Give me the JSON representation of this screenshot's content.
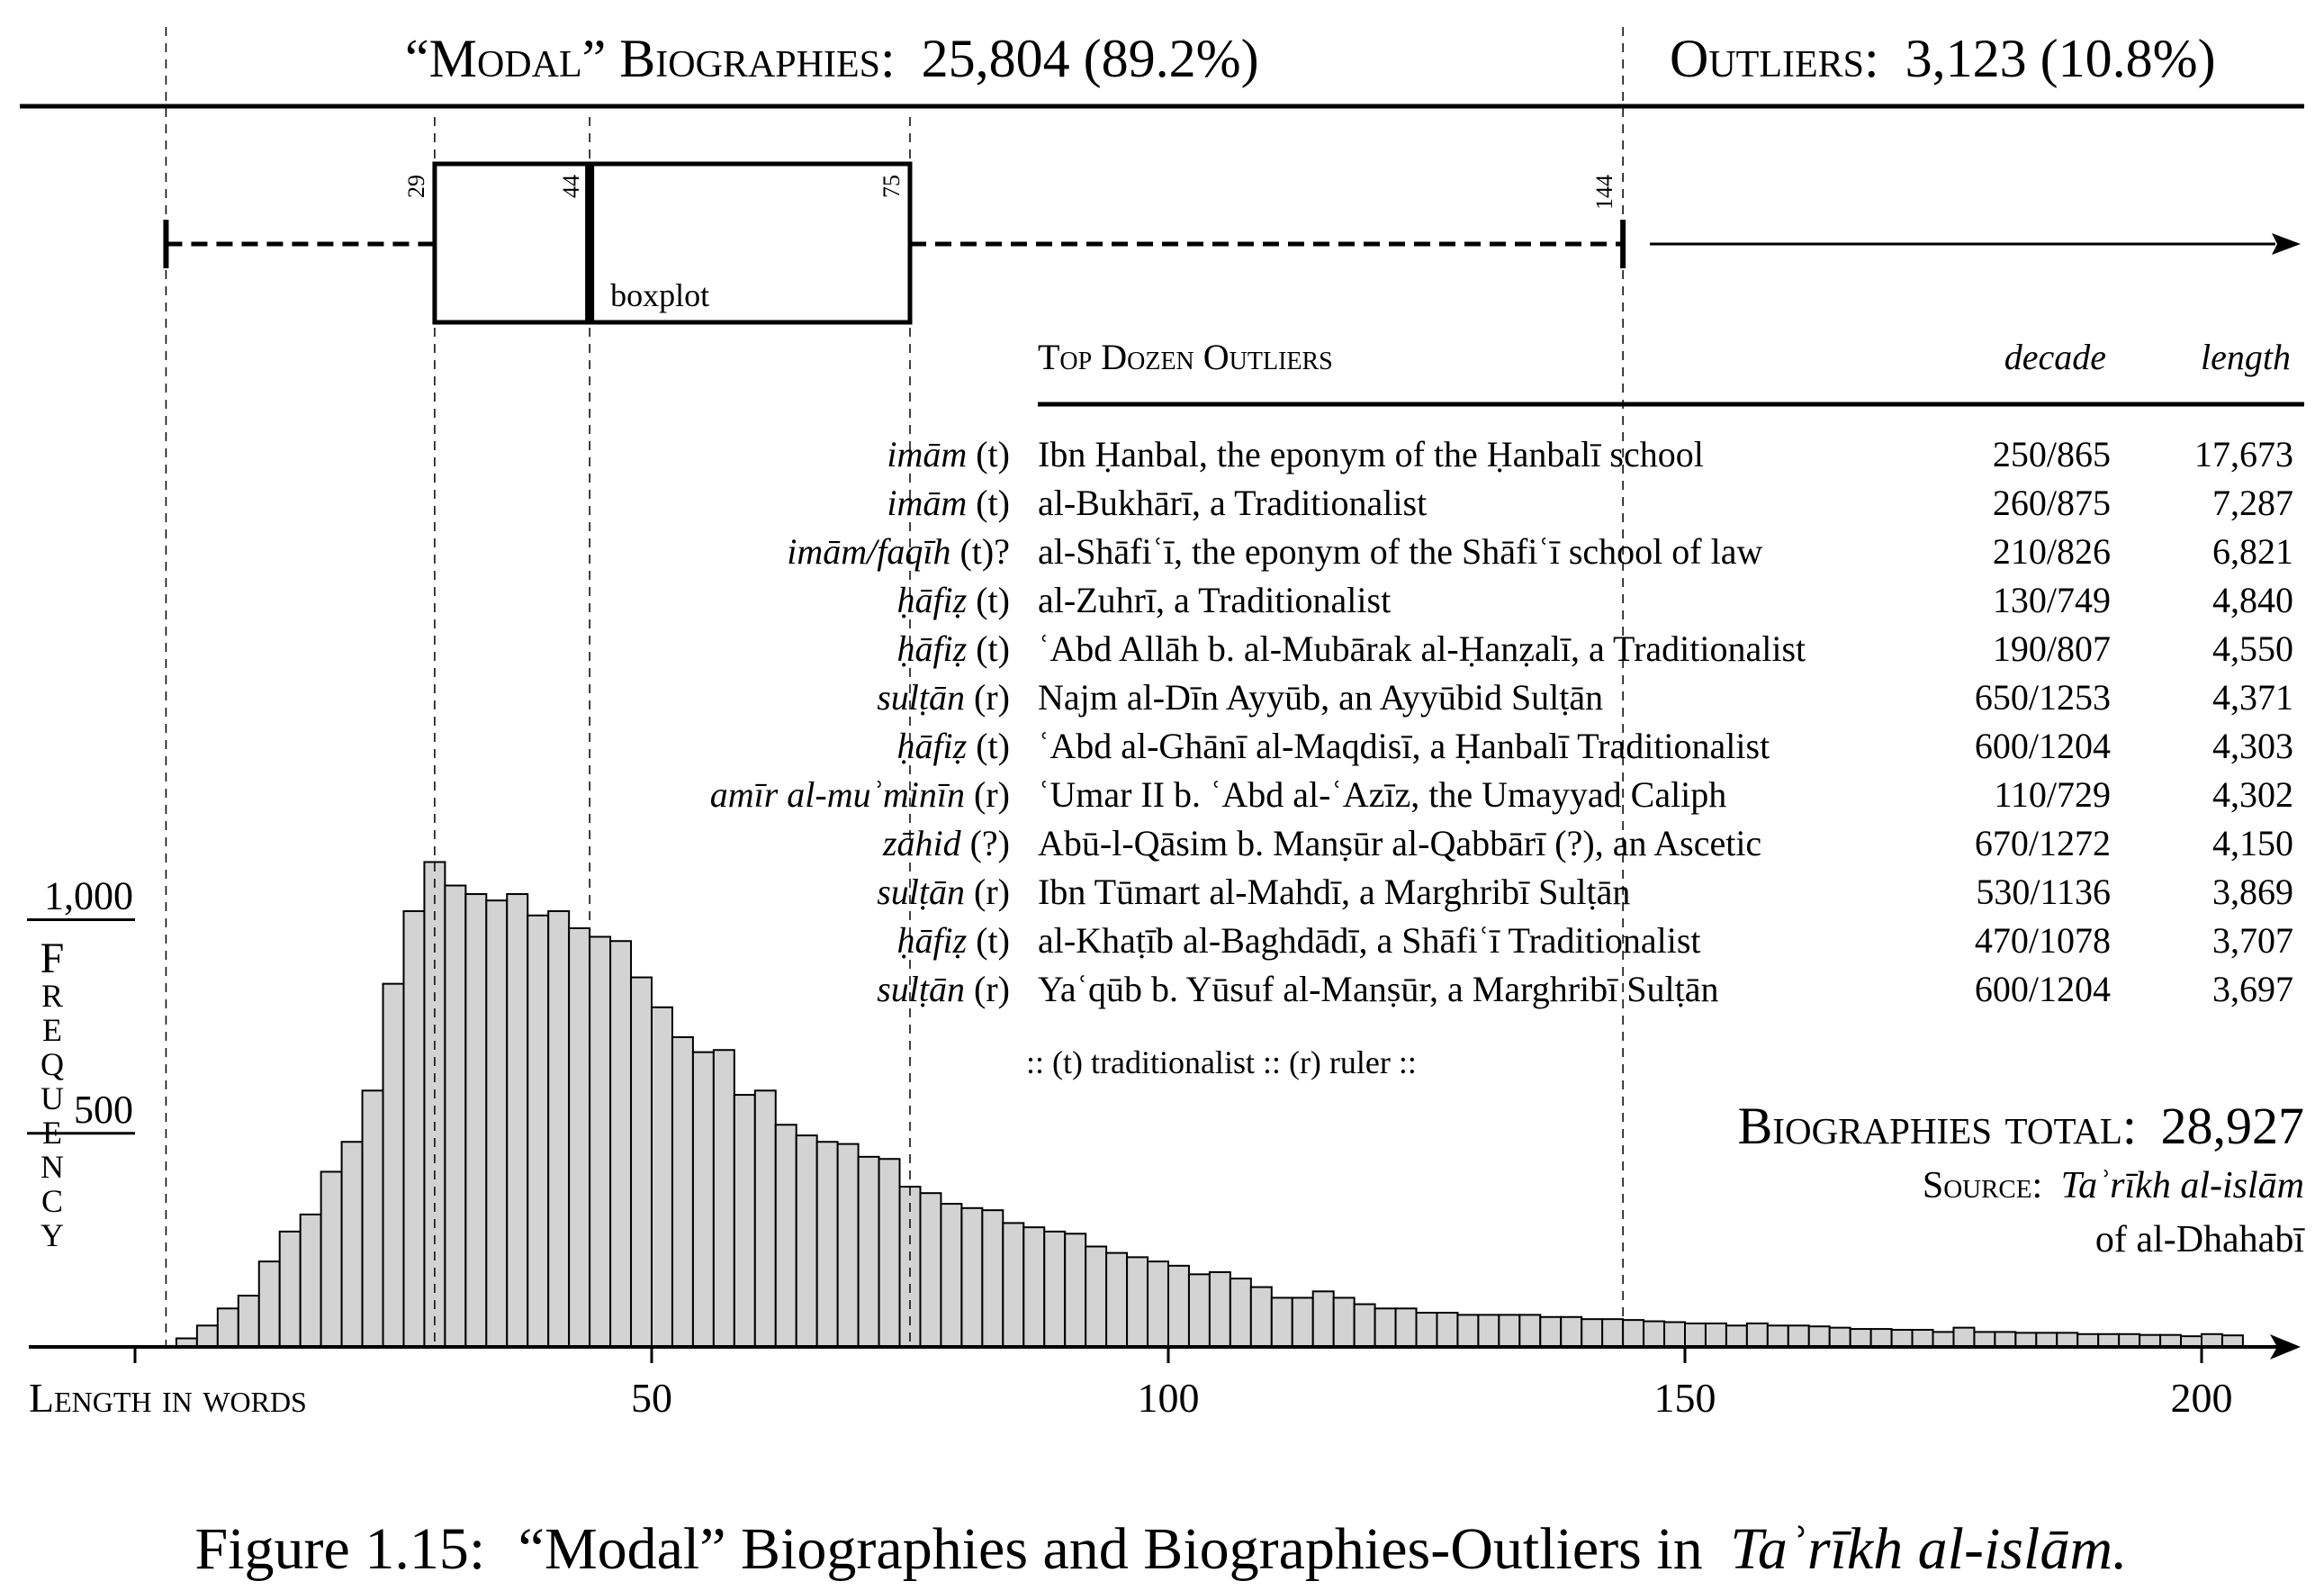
{
  "header": {
    "modal_label": "“Modal” Biographies:",
    "modal_value": "25,804 (89.2%)",
    "outliers_label": "Outliers:",
    "outliers_value": "3,123 (10.8%)"
  },
  "boxplot": {
    "label": "boxplot",
    "whisker_low": 3,
    "q1": 29,
    "median": 44,
    "q3": 75,
    "whisker_high": 144,
    "q1_label": "29",
    "median_label": "44",
    "q3_label": "75",
    "whisker_high_label": "144"
  },
  "table": {
    "title": "Top Dozen Outliers",
    "col_decade": "decade",
    "col_length": "length",
    "rows": [
      {
        "role": "imām",
        "tag": "(t)",
        "name": "Ibn Ḥanbal, the eponym of the Ḥanbalī school",
        "decade": "250/865",
        "length": "17,673"
      },
      {
        "role": "imām",
        "tag": "(t)",
        "name": "al-Bukhārī, a Traditionalist",
        "decade": "260/875",
        "length": "7,287"
      },
      {
        "role": "imām/faqīh",
        "tag": "(t)?",
        "name": "al-Shāfiʿī, the eponym of the Shāfiʿī school of law",
        "decade": "210/826",
        "length": "6,821"
      },
      {
        "role": "ḥāfiẓ",
        "tag": "(t)",
        "name": "al-Zuhrī, a Traditionalist",
        "decade": "130/749",
        "length": "4,840"
      },
      {
        "role": "ḥāfiẓ",
        "tag": "(t)",
        "name": "ʿAbd Allāh b. al-Mubārak al-Ḥanẓalī, a Traditionalist",
        "decade": "190/807",
        "length": "4,550"
      },
      {
        "role": "sulṭān",
        "tag": "(r)",
        "name": "Najm al-Dīn Ayyūb, an Ayyūbid Sulṭān",
        "decade": "650/1253",
        "length": "4,371"
      },
      {
        "role": "ḥāfiẓ",
        "tag": "(t)",
        "name": "ʿAbd al-Ghānī al-Maqdisī, a Ḥanbalī Traditionalist",
        "decade": "600/1204",
        "length": "4,303"
      },
      {
        "role": "amīr al-muʾminīn",
        "tag": "(r)",
        "name": "ʿUmar II b. ʿAbd al-ʿAzīz, the Umayyad Caliph",
        "decade": "110/729",
        "length": "4,302"
      },
      {
        "role": "zāhid",
        "tag": "(?)",
        "name": "Abū-l-Qāsim b. Manṣūr al-Qabbārī (?), an Ascetic",
        "decade": "670/1272",
        "length": "4,150"
      },
      {
        "role": "sulṭān",
        "tag": "(r)",
        "name": "Ibn Tūmart al-Mahdī, a Marghribī Sulṭān",
        "decade": "530/1136",
        "length": "3,869"
      },
      {
        "role": "ḥāfiẓ",
        "tag": "(t)",
        "name": "al-Khaṭīb al-Baghdādī, a Shāfiʿī Traditionalist",
        "decade": "470/1078",
        "length": "3,707"
      },
      {
        "role": "sulṭān",
        "tag": "(r)",
        "name": "Yaʿqūb b. Yūsuf al-Manṣūr, a Marghribī Sulṭān",
        "decade": "600/1204",
        "length": "3,697"
      }
    ],
    "legend": ":: (t) traditionalist :: (r) ruler ::"
  },
  "totals": {
    "label": "Biographies total:",
    "value": "28,927",
    "source_label": "Source:",
    "source_title": "Taʾrīkh al-islām",
    "source_author": "of al-Dhahabī"
  },
  "caption": {
    "prefix": "Figure 1.15:",
    "text": "“Modal” Biographies and Biographies-Outliers in",
    "title": "Taʾrīkh al-islām."
  },
  "chart_data": {
    "type": "bar",
    "xlabel": "Length in words",
    "ylabel": "Frequency",
    "x_ticks": [
      50,
      100,
      150,
      200
    ],
    "y_ticks": [
      500,
      1000
    ],
    "y_tick_labels": [
      "500",
      "1,000"
    ],
    "xlim": [
      0,
      207
    ],
    "ylim": [
      0,
      1190
    ],
    "bin_width": 2,
    "x_start": 4,
    "values": [
      20,
      50,
      90,
      120,
      200,
      270,
      310,
      410,
      480,
      600,
      850,
      1020,
      1135,
      1080,
      1060,
      1045,
      1060,
      1010,
      1020,
      980,
      960,
      950,
      865,
      795,
      725,
      690,
      695,
      590,
      600,
      520,
      495,
      480,
      475,
      445,
      440,
      375,
      360,
      335,
      325,
      320,
      290,
      280,
      270,
      265,
      235,
      220,
      210,
      200,
      190,
      170,
      175,
      160,
      140,
      115,
      115,
      130,
      115,
      100,
      90,
      90,
      80,
      80,
      75,
      75,
      75,
      75,
      70,
      70,
      65,
      65,
      63,
      60,
      58,
      55,
      55,
      50,
      55,
      50,
      50,
      48,
      45,
      42,
      42,
      40,
      40,
      35,
      45,
      35,
      35,
      33,
      33,
      33,
      30,
      30,
      30,
      28,
      28,
      25,
      30,
      27
    ]
  }
}
